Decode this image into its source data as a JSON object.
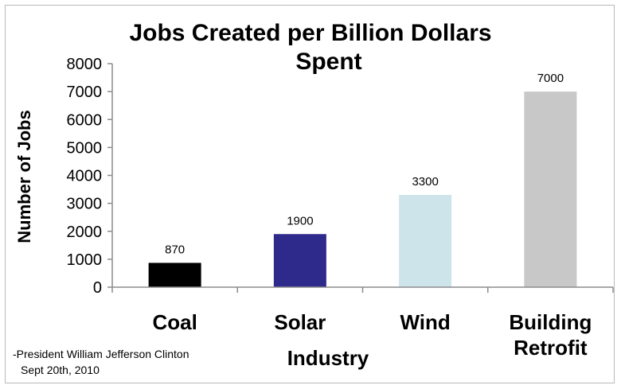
{
  "chart_data": {
    "type": "bar",
    "title": "Jobs Created per Billion Dollars Spent",
    "xlabel": "Industry",
    "ylabel": "Number of Jobs",
    "categories": [
      "Coal",
      "Solar",
      "Wind",
      "Building Retrofit"
    ],
    "values": [
      870,
      1900,
      3300,
      7000
    ],
    "data_labels": [
      "870",
      "1900",
      "3300",
      "7000"
    ],
    "colors": [
      "#000000",
      "#2e2a8c",
      "#cde5ea",
      "#c8c8c8"
    ],
    "ylim": [
      0,
      8000
    ],
    "yticks": [
      0,
      1000,
      2000,
      3000,
      4000,
      5000,
      6000,
      7000,
      8000
    ],
    "grid": false,
    "legend": "none"
  },
  "annotation": {
    "line1": "-President William Jefferson Clinton",
    "line2": "Sept 20th, 2010"
  }
}
